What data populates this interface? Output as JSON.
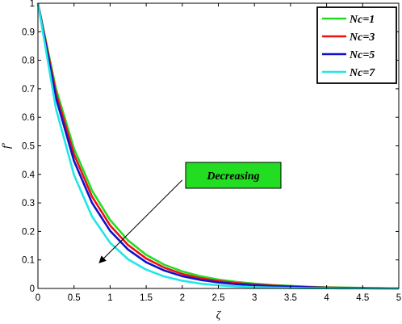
{
  "chart_data": {
    "type": "line",
    "xlabel": "ζ",
    "ylabel": "f′",
    "xlim": [
      0,
      5
    ],
    "ylim": [
      0,
      1
    ],
    "xticks": [
      "0",
      "0.5",
      "1",
      "1.5",
      "2",
      "2.5",
      "3",
      "3.5",
      "4",
      "4.5",
      "5"
    ],
    "yticks": [
      "0",
      "0.1",
      "0.2",
      "0.3",
      "0.4",
      "0.5",
      "0.6",
      "0.7",
      "0.8",
      "0.9",
      "1"
    ],
    "grid": false,
    "legend_position": "top-right",
    "x": [
      0,
      0.25,
      0.5,
      0.75,
      1,
      1.25,
      1.5,
      1.75,
      2,
      2.25,
      2.5,
      2.75,
      3,
      3.25,
      3.5,
      3.75,
      4,
      4.25,
      4.5,
      4.75,
      5
    ],
    "series": [
      {
        "name": "Nc=1",
        "color": "#22dd22",
        "values": [
          1,
          0.7,
          0.49,
          0.343,
          0.24,
          0.168,
          0.118,
          0.083,
          0.06,
          0.043,
          0.031,
          0.023,
          0.017,
          0.012,
          0.009,
          0.006,
          0.004,
          0.003,
          0.002,
          0.001,
          0.0
        ]
      },
      {
        "name": "Nc=3",
        "color": "#ee1111",
        "values": [
          1,
          0.685,
          0.47,
          0.322,
          0.221,
          0.152,
          0.105,
          0.073,
          0.051,
          0.036,
          0.026,
          0.019,
          0.014,
          0.01,
          0.007,
          0.005,
          0.003,
          0.002,
          0.001,
          0.001,
          0.0
        ]
      },
      {
        "name": "Nc=5",
        "color": "#1111cc",
        "values": [
          1,
          0.668,
          0.447,
          0.3,
          0.202,
          0.136,
          0.092,
          0.063,
          0.043,
          0.03,
          0.021,
          0.015,
          0.011,
          0.008,
          0.006,
          0.004,
          0.002,
          0.001,
          0.001,
          0.0,
          0.0
        ]
      },
      {
        "name": "Nc=7",
        "color": "#22e6e6",
        "values": [
          1,
          0.63,
          0.398,
          0.252,
          0.16,
          0.102,
          0.066,
          0.042,
          0.027,
          0.017,
          0.011,
          0.007,
          0.005,
          0.003,
          0.002,
          0.001,
          0.001,
          0.0,
          0.0,
          0.0,
          0.0
        ]
      }
    ],
    "annotation": {
      "text": "Decreasing",
      "background": "#22dd22",
      "arrow_from": [
        2.0,
        0.38
      ],
      "arrow_to": [
        0.85,
        0.09
      ]
    }
  }
}
